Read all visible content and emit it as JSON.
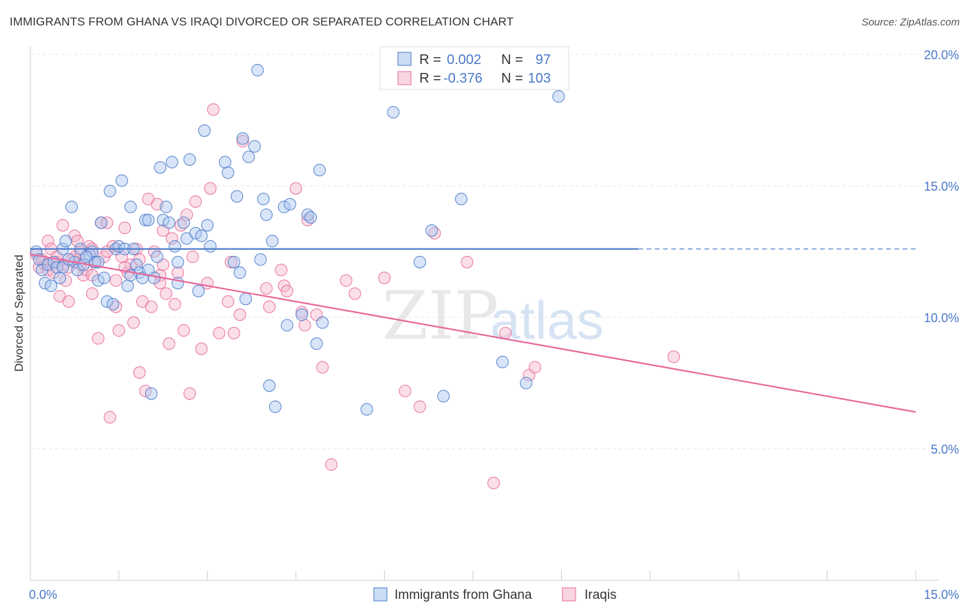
{
  "title": "IMMIGRANTS FROM GHANA VS IRAQI DIVORCED OR SEPARATED CORRELATION CHART",
  "source": "Source: ZipAtlas.com",
  "watermark": {
    "part1": "ZIP",
    "part2": "atlas"
  },
  "colors": {
    "blue": "#4a79c8",
    "blue_fill": "#a9c6ef",
    "pink": "#e8679a",
    "pink_fill": "#f5b7cd",
    "grid": "#e6e6e6"
  },
  "legend": {
    "rows": [
      {
        "r_label": "R =",
        "r_value": "0.002",
        "n_label": "N =",
        "n_value": "97"
      },
      {
        "r_label": "R =",
        "r_value": "-0.376",
        "n_label": "N =",
        "n_value": "103"
      }
    ]
  },
  "chart_data": {
    "type": "scatter",
    "title": "IMMIGRANTS FROM GHANA VS IRAQI DIVORCED OR SEPARATED CORRELATION CHART",
    "xlabel": "",
    "ylabel": "Divorced or Separated",
    "xlim": [
      0,
      15
    ],
    "ylim": [
      0,
      21
    ],
    "x_tick_labels": [
      "0.0%",
      "15.0%"
    ],
    "y_ticks": [
      5,
      10,
      15,
      20
    ],
    "y_tick_labels": [
      "5.0%",
      "10.0%",
      "15.0%",
      "20.0%"
    ],
    "grid": true,
    "legend_position": "top-center",
    "series": [
      {
        "name": "Immigrants from Ghana",
        "color": "#4a79c8",
        "trend": {
          "x": [
            0,
            10.3
          ],
          "y": [
            12.6,
            12.6
          ],
          "dashed_to": 15
        },
        "points": [
          [
            0.1,
            12.5
          ],
          [
            0.15,
            12.2
          ],
          [
            0.2,
            11.8
          ],
          [
            0.25,
            11.3
          ],
          [
            0.3,
            12.0
          ],
          [
            0.35,
            11.2
          ],
          [
            0.4,
            12.1
          ],
          [
            0.45,
            11.9
          ],
          [
            0.5,
            11.5
          ],
          [
            0.55,
            12.6
          ],
          [
            0.6,
            12.9
          ],
          [
            0.7,
            14.2
          ],
          [
            0.75,
            12.1
          ],
          [
            0.8,
            11.8
          ],
          [
            0.85,
            12.6
          ],
          [
            0.9,
            12.0
          ],
          [
            1.0,
            12.4
          ],
          [
            1.05,
            12.5
          ],
          [
            1.1,
            12.1
          ],
          [
            1.15,
            11.4
          ],
          [
            1.2,
            13.6
          ],
          [
            1.25,
            11.5
          ],
          [
            1.3,
            10.6
          ],
          [
            1.35,
            14.8
          ],
          [
            1.4,
            10.5
          ],
          [
            1.45,
            12.6
          ],
          [
            1.5,
            12.7
          ],
          [
            1.55,
            15.2
          ],
          [
            1.6,
            12.6
          ],
          [
            1.65,
            11.2
          ],
          [
            1.7,
            14.2
          ],
          [
            1.75,
            12.6
          ],
          [
            1.8,
            12.0
          ],
          [
            1.85,
            11.7
          ],
          [
            1.9,
            11.5
          ],
          [
            1.95,
            13.7
          ],
          [
            2.0,
            13.7
          ],
          [
            2.05,
            7.1
          ],
          [
            2.1,
            11.5
          ],
          [
            2.15,
            12.3
          ],
          [
            2.2,
            15.7
          ],
          [
            2.25,
            13.7
          ],
          [
            2.3,
            14.2
          ],
          [
            2.35,
            13.6
          ],
          [
            2.4,
            15.9
          ],
          [
            2.45,
            12.7
          ],
          [
            2.5,
            12.1
          ],
          [
            2.6,
            13.6
          ],
          [
            2.65,
            13.0
          ],
          [
            2.7,
            16.0
          ],
          [
            2.8,
            13.2
          ],
          [
            2.85,
            11.0
          ],
          [
            2.9,
            13.1
          ],
          [
            2.95,
            17.1
          ],
          [
            3.0,
            13.5
          ],
          [
            3.05,
            12.7
          ],
          [
            3.3,
            15.9
          ],
          [
            3.35,
            15.5
          ],
          [
            3.45,
            12.1
          ],
          [
            3.5,
            14.6
          ],
          [
            3.55,
            11.7
          ],
          [
            3.6,
            16.8
          ],
          [
            3.65,
            10.7
          ],
          [
            3.7,
            16.1
          ],
          [
            3.8,
            16.5
          ],
          [
            3.85,
            19.4
          ],
          [
            3.9,
            12.2
          ],
          [
            3.95,
            14.5
          ],
          [
            4.0,
            13.9
          ],
          [
            4.05,
            7.4
          ],
          [
            4.1,
            12.9
          ],
          [
            4.15,
            6.6
          ],
          [
            4.3,
            14.2
          ],
          [
            4.35,
            9.7
          ],
          [
            4.4,
            14.3
          ],
          [
            4.6,
            10.1
          ],
          [
            4.7,
            13.9
          ],
          [
            4.75,
            13.8
          ],
          [
            4.85,
            9.0
          ],
          [
            4.9,
            15.6
          ],
          [
            4.95,
            9.8
          ],
          [
            5.7,
            6.5
          ],
          [
            6.15,
            17.8
          ],
          [
            6.6,
            12.1
          ],
          [
            6.8,
            13.3
          ],
          [
            7.3,
            14.5
          ],
          [
            8.0,
            8.3
          ],
          [
            8.4,
            7.5
          ],
          [
            8.95,
            18.4
          ],
          [
            7.0,
            7.0
          ],
          [
            0.55,
            11.9
          ],
          [
            0.65,
            12.2
          ],
          [
            2.0,
            11.8
          ],
          [
            1.15,
            12.1
          ],
          [
            0.95,
            12.3
          ],
          [
            1.7,
            11.6
          ],
          [
            2.5,
            11.3
          ]
        ]
      },
      {
        "name": "Iraqis",
        "color": "#e8679a",
        "trend": {
          "x": [
            0,
            15
          ],
          "y": [
            12.4,
            6.4
          ]
        },
        "points": [
          [
            0.1,
            12.4
          ],
          [
            0.15,
            11.9
          ],
          [
            0.2,
            12.2
          ],
          [
            0.25,
            12.0
          ],
          [
            0.3,
            12.9
          ],
          [
            0.35,
            12.6
          ],
          [
            0.4,
            11.7
          ],
          [
            0.45,
            12.1
          ],
          [
            0.5,
            10.8
          ],
          [
            0.55,
            13.5
          ],
          [
            0.6,
            11.4
          ],
          [
            0.65,
            10.6
          ],
          [
            0.7,
            12.2
          ],
          [
            0.75,
            13.1
          ],
          [
            0.8,
            12.9
          ],
          [
            0.85,
            12.5
          ],
          [
            0.9,
            11.6
          ],
          [
            0.95,
            11.8
          ],
          [
            1.0,
            12.7
          ],
          [
            1.05,
            10.9
          ],
          [
            1.1,
            12.1
          ],
          [
            1.15,
            9.2
          ],
          [
            1.2,
            13.6
          ],
          [
            1.25,
            12.3
          ],
          [
            1.3,
            13.6
          ],
          [
            1.35,
            6.2
          ],
          [
            1.4,
            12.7
          ],
          [
            1.45,
            10.4
          ],
          [
            1.5,
            9.5
          ],
          [
            1.55,
            12.3
          ],
          [
            1.6,
            13.4
          ],
          [
            1.65,
            11.7
          ],
          [
            1.7,
            12.0
          ],
          [
            1.75,
            9.8
          ],
          [
            1.8,
            12.6
          ],
          [
            1.85,
            7.9
          ],
          [
            1.9,
            10.6
          ],
          [
            1.95,
            7.2
          ],
          [
            2.0,
            14.5
          ],
          [
            2.05,
            10.4
          ],
          [
            2.1,
            12.5
          ],
          [
            2.15,
            14.3
          ],
          [
            2.2,
            11.6
          ],
          [
            2.25,
            13.3
          ],
          [
            2.3,
            10.9
          ],
          [
            2.35,
            9.0
          ],
          [
            2.4,
            13.0
          ],
          [
            2.45,
            10.5
          ],
          [
            2.5,
            11.7
          ],
          [
            2.55,
            13.5
          ],
          [
            2.6,
            9.5
          ],
          [
            2.65,
            13.9
          ],
          [
            2.7,
            7.1
          ],
          [
            2.8,
            14.4
          ],
          [
            2.9,
            8.8
          ],
          [
            3.0,
            11.3
          ],
          [
            3.05,
            14.9
          ],
          [
            3.1,
            17.9
          ],
          [
            3.2,
            9.4
          ],
          [
            3.35,
            10.6
          ],
          [
            3.4,
            12.1
          ],
          [
            3.45,
            9.4
          ],
          [
            3.55,
            10.1
          ],
          [
            3.6,
            16.7
          ],
          [
            4.0,
            11.1
          ],
          [
            4.05,
            10.4
          ],
          [
            4.25,
            11.8
          ],
          [
            4.3,
            11.2
          ],
          [
            4.35,
            11.0
          ],
          [
            4.5,
            14.9
          ],
          [
            4.6,
            10.2
          ],
          [
            4.65,
            9.7
          ],
          [
            4.7,
            13.7
          ],
          [
            4.85,
            10.1
          ],
          [
            4.95,
            8.1
          ],
          [
            5.35,
            11.4
          ],
          [
            5.5,
            10.9
          ],
          [
            5.1,
            4.4
          ],
          [
            6.0,
            11.5
          ],
          [
            6.35,
            7.2
          ],
          [
            6.6,
            6.6
          ],
          [
            6.85,
            13.2
          ],
          [
            7.4,
            12.1
          ],
          [
            7.85,
            3.7
          ],
          [
            8.05,
            9.4
          ],
          [
            8.45,
            7.8
          ],
          [
            8.55,
            8.1
          ],
          [
            10.9,
            8.5
          ],
          [
            0.55,
            12.0
          ],
          [
            0.75,
            12.3
          ],
          [
            1.05,
            11.6
          ],
          [
            1.3,
            12.5
          ],
          [
            1.85,
            12.2
          ],
          [
            2.25,
            12.0
          ],
          [
            1.6,
            11.9
          ],
          [
            0.3,
            11.8
          ],
          [
            0.45,
            12.3
          ],
          [
            1.45,
            11.4
          ],
          [
            2.75,
            12.3
          ],
          [
            2.2,
            11.3
          ],
          [
            0.85,
            12.0
          ],
          [
            1.05,
            12.6
          ],
          [
            0.65,
            11.9
          ]
        ]
      }
    ]
  }
}
